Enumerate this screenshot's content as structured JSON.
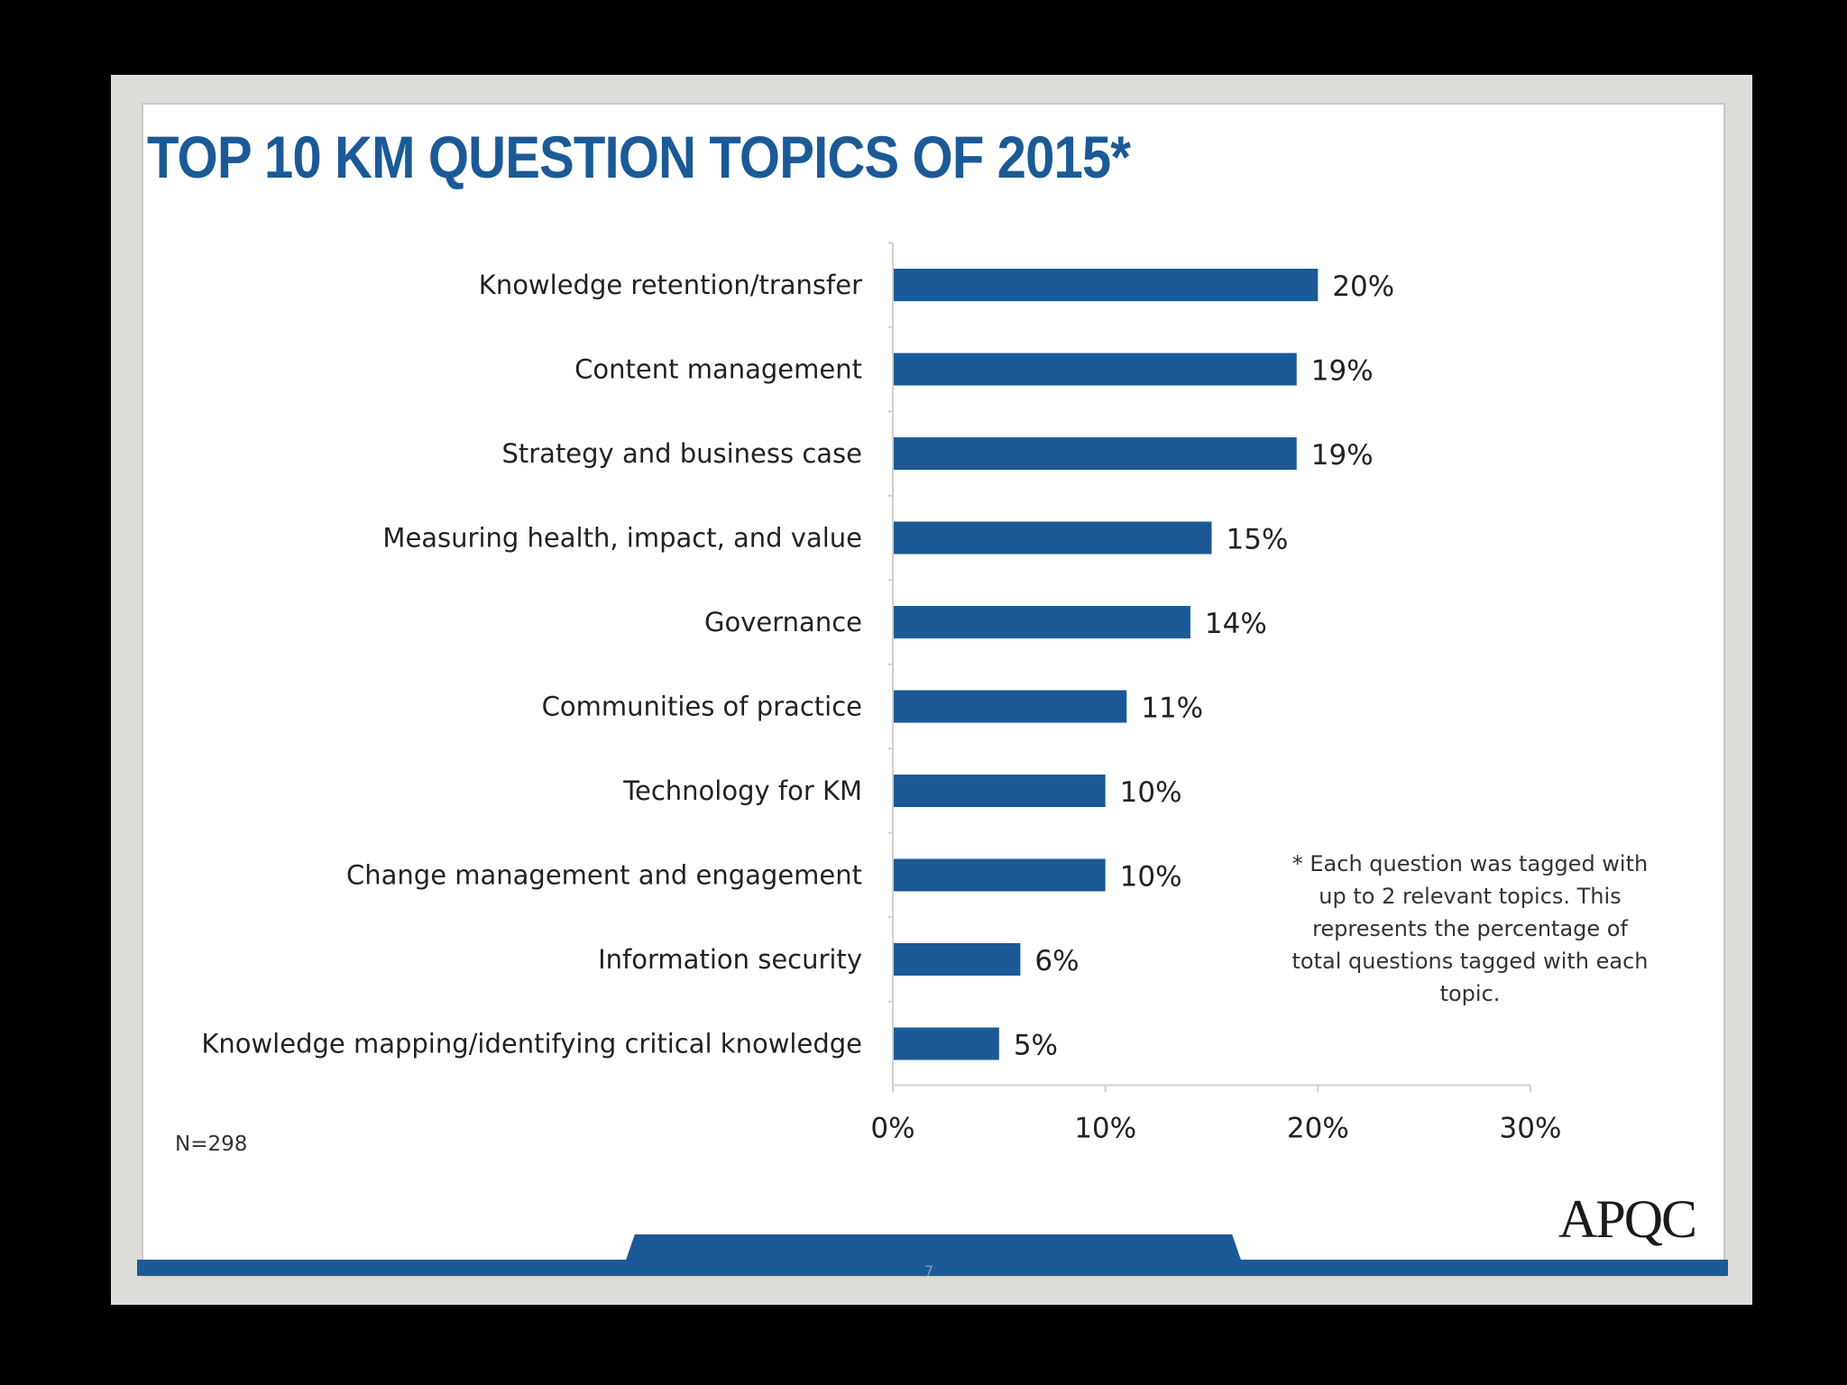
{
  "slide": {
    "title": "TOP 10 KM QUESTION TOPICS OF 2015*",
    "footnote": "* Each question was  tagged with up to 2 relevant topics. This represents the percentage of total questions tagged with each topic.",
    "sample_size": "N=298",
    "logo": "APQC",
    "page_number": "7"
  },
  "chart_data": {
    "type": "bar",
    "orientation": "horizontal",
    "categories": [
      "Knowledge retention/transfer",
      "Content management",
      "Strategy and business case",
      "Measuring health, impact, and value",
      "Governance",
      "Communities of practice",
      "Technology for KM",
      "Change management and engagement",
      "Information security",
      "Knowledge mapping/identifying critical knowledge"
    ],
    "values": [
      20,
      19,
      19,
      15,
      14,
      11,
      10,
      10,
      6,
      5
    ],
    "value_labels": [
      "20%",
      "19%",
      "19%",
      "15%",
      "14%",
      "11%",
      "10%",
      "10%",
      "6%",
      "5%"
    ],
    "xlim": [
      0,
      30
    ],
    "xticks": [
      0,
      10,
      20,
      30
    ],
    "xtick_labels": [
      "0%",
      "10%",
      "20%",
      "30%"
    ],
    "bar_color": "#1b5a96",
    "grid": false,
    "legend": "none"
  }
}
